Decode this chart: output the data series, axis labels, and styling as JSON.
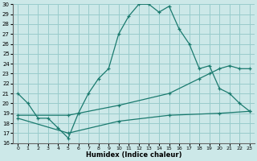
{
  "xlabel": "Humidex (Indice chaleur)",
  "xlim": [
    -0.5,
    23.5
  ],
  "ylim": [
    16,
    30
  ],
  "xticks": [
    0,
    1,
    2,
    3,
    4,
    5,
    6,
    7,
    8,
    9,
    10,
    11,
    12,
    13,
    14,
    15,
    16,
    17,
    18,
    19,
    20,
    21,
    22,
    23
  ],
  "yticks": [
    16,
    17,
    18,
    19,
    20,
    21,
    22,
    23,
    24,
    25,
    26,
    27,
    28,
    29,
    30
  ],
  "bg_color": "#cce8e8",
  "line_color": "#1a7a6e",
  "grid_color": "#99cccc",
  "line1_x": [
    0,
    1,
    2,
    3,
    4,
    5,
    6,
    7,
    8,
    9,
    10,
    11,
    12,
    13,
    14,
    15,
    16,
    17,
    18,
    19,
    20,
    21,
    22,
    23
  ],
  "line1_y": [
    21,
    20,
    18.5,
    18.5,
    17.5,
    16.5,
    19,
    21,
    22.5,
    23.5,
    27,
    28.8,
    30,
    30,
    29.2,
    29.8,
    27.5,
    26,
    23.5,
    23.8,
    21.5,
    21,
    20,
    19.2
  ],
  "line2_x": [
    0,
    5,
    10,
    15,
    18,
    19,
    20,
    21,
    22,
    23
  ],
  "line2_y": [
    18.8,
    18.8,
    19.8,
    21.0,
    22.5,
    23.0,
    23.5,
    23.8,
    23.5,
    23.5
  ],
  "line3_x": [
    0,
    5,
    10,
    15,
    20,
    23
  ],
  "line3_y": [
    18.5,
    17.0,
    18.2,
    18.8,
    19.0,
    19.2
  ]
}
